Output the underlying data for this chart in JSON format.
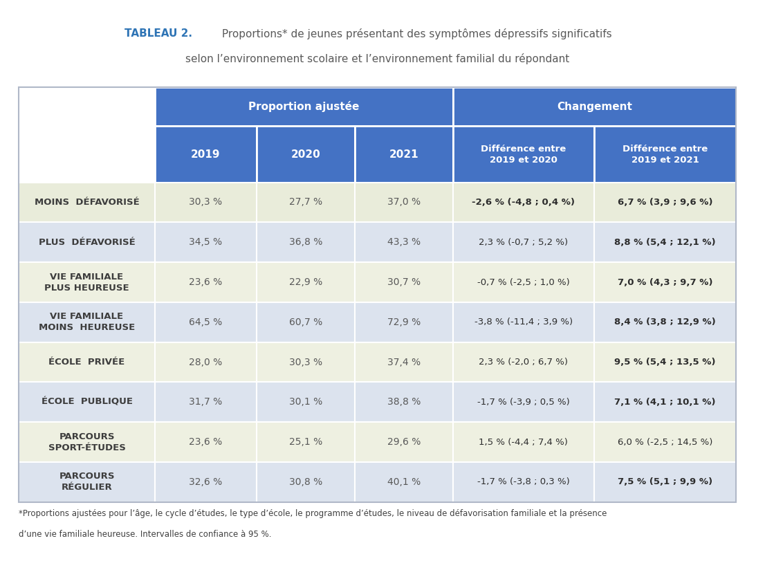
{
  "title_bold": "TABLEAU 2.",
  "title_rest1": " Proportions* de jeunes présentant des symptômes dépressifs significatifs",
  "title_rest2": "selon l’environnement scolaire et l’environnement familial du répondant",
  "header1_text": "Proportion ajustée",
  "header2_text": "Changement",
  "col_headers_years": [
    "2019",
    "2020",
    "2021"
  ],
  "col_headers_diff": [
    "Différence entre\n2019 et 2020",
    "Différence entre\n2019 et 2021"
  ],
  "rows": [
    {
      "label_lines": [
        "MOINS  DÉFAVORISÉ"
      ],
      "values": [
        "30,3 %",
        "27,7 %",
        "37,0 %"
      ],
      "diff1": "-2,6 % (-4,8 ; 0,4 %)",
      "diff1_bold": true,
      "diff2": "6,7 % (3,9 ; 9,6 %)",
      "diff2_bold": true,
      "row_color": "#e9ecda",
      "label_color": "#e9ecda"
    },
    {
      "label_lines": [
        "PLUS  DÉFAVORISÉ"
      ],
      "values": [
        "34,5 %",
        "36,8 %",
        "43,3 %"
      ],
      "diff1": "2,3 % (-0,7 ; 5,2 %)",
      "diff1_bold": false,
      "diff2": "8,8 % (5,4 ; 12,1 %)",
      "diff2_bold": true,
      "row_color": "#dce3ee",
      "label_color": "#dce3ee"
    },
    {
      "label_lines": [
        "VIE FAMILIALE",
        "PLUS HEUREUSE"
      ],
      "values": [
        "23,6 %",
        "22,9 %",
        "30,7 %"
      ],
      "diff1": "-0,7 % (-2,5 ; 1,0 %)",
      "diff1_bold": false,
      "diff2": "7,0 % (4,3 ; 9,7 %)",
      "diff2_bold": true,
      "row_color": "#eef0e1",
      "label_color": "#eef0e1"
    },
    {
      "label_lines": [
        "VIE FAMILIALE",
        "MOINS  HEUREUSE"
      ],
      "values": [
        "64,5 %",
        "60,7 %",
        "72,9 %"
      ],
      "diff1": "-3,8 % (-11,4 ; 3,9 %)",
      "diff1_bold": false,
      "diff2": "8,4 % (3,8 ; 12,9 %)",
      "diff2_bold": true,
      "row_color": "#dce3ee",
      "label_color": "#dce3ee"
    },
    {
      "label_lines": [
        "ÉCOLE  PRIVÉE"
      ],
      "values": [
        "28,0 %",
        "30,3 %",
        "37,4 %"
      ],
      "diff1": "2,3 % (-2,0 ; 6,7 %)",
      "diff1_bold": false,
      "diff2": "9,5 % (5,4 ; 13,5 %)",
      "diff2_bold": true,
      "row_color": "#eef0e1",
      "label_color": "#eef0e1"
    },
    {
      "label_lines": [
        "ÉCOLE  PUBLIQUE"
      ],
      "values": [
        "31,7 %",
        "30,1 %",
        "38,8 %"
      ],
      "diff1": "-1,7 % (-3,9 ; 0,5 %)",
      "diff1_bold": false,
      "diff2": "7,1 % (4,1 ; 10,1 %)",
      "diff2_bold": true,
      "row_color": "#dce3ee",
      "label_color": "#dce3ee"
    },
    {
      "label_lines": [
        "PARCOURS",
        "SPORT-ÉTUDES"
      ],
      "values": [
        "23,6 %",
        "25,1 %",
        "29,6 %"
      ],
      "diff1": "1,5 % (-4,4 ; 7,4 %)",
      "diff1_bold": false,
      "diff2": "6,0 % (-2,5 ; 14,5 %)",
      "diff2_bold": false,
      "row_color": "#eef0e1",
      "label_color": "#eef0e1"
    },
    {
      "label_lines": [
        "PARCOURS",
        "RÉGULIER"
      ],
      "values": [
        "32,6 %",
        "30,8 %",
        "40,1 %"
      ],
      "diff1": "-1,7 % (-3,8 ; 0,3 %)",
      "diff1_bold": false,
      "diff2": "7,5 % (5,1 ; 9,9 %)",
      "diff2_bold": true,
      "row_color": "#dce3ee",
      "label_color": "#dce3ee"
    }
  ],
  "footer_line1": "*Proportions ajustées pour l’âge, le cycle d’études, le type d’école, le programme d’études, le niveau de défavorisation familiale et la présence",
  "footer_line2": "d’une vie familiale heureuse. Intervalles de confiance à 95 %.",
  "header_bg": "#4472c4",
  "header_text_color": "#ffffff",
  "title_color_bold": "#2e74b5",
  "title_color_rest": "#595959",
  "data_text_color": "#595959",
  "border_color": "#ffffff",
  "outer_border_color": "#b0b8c8"
}
